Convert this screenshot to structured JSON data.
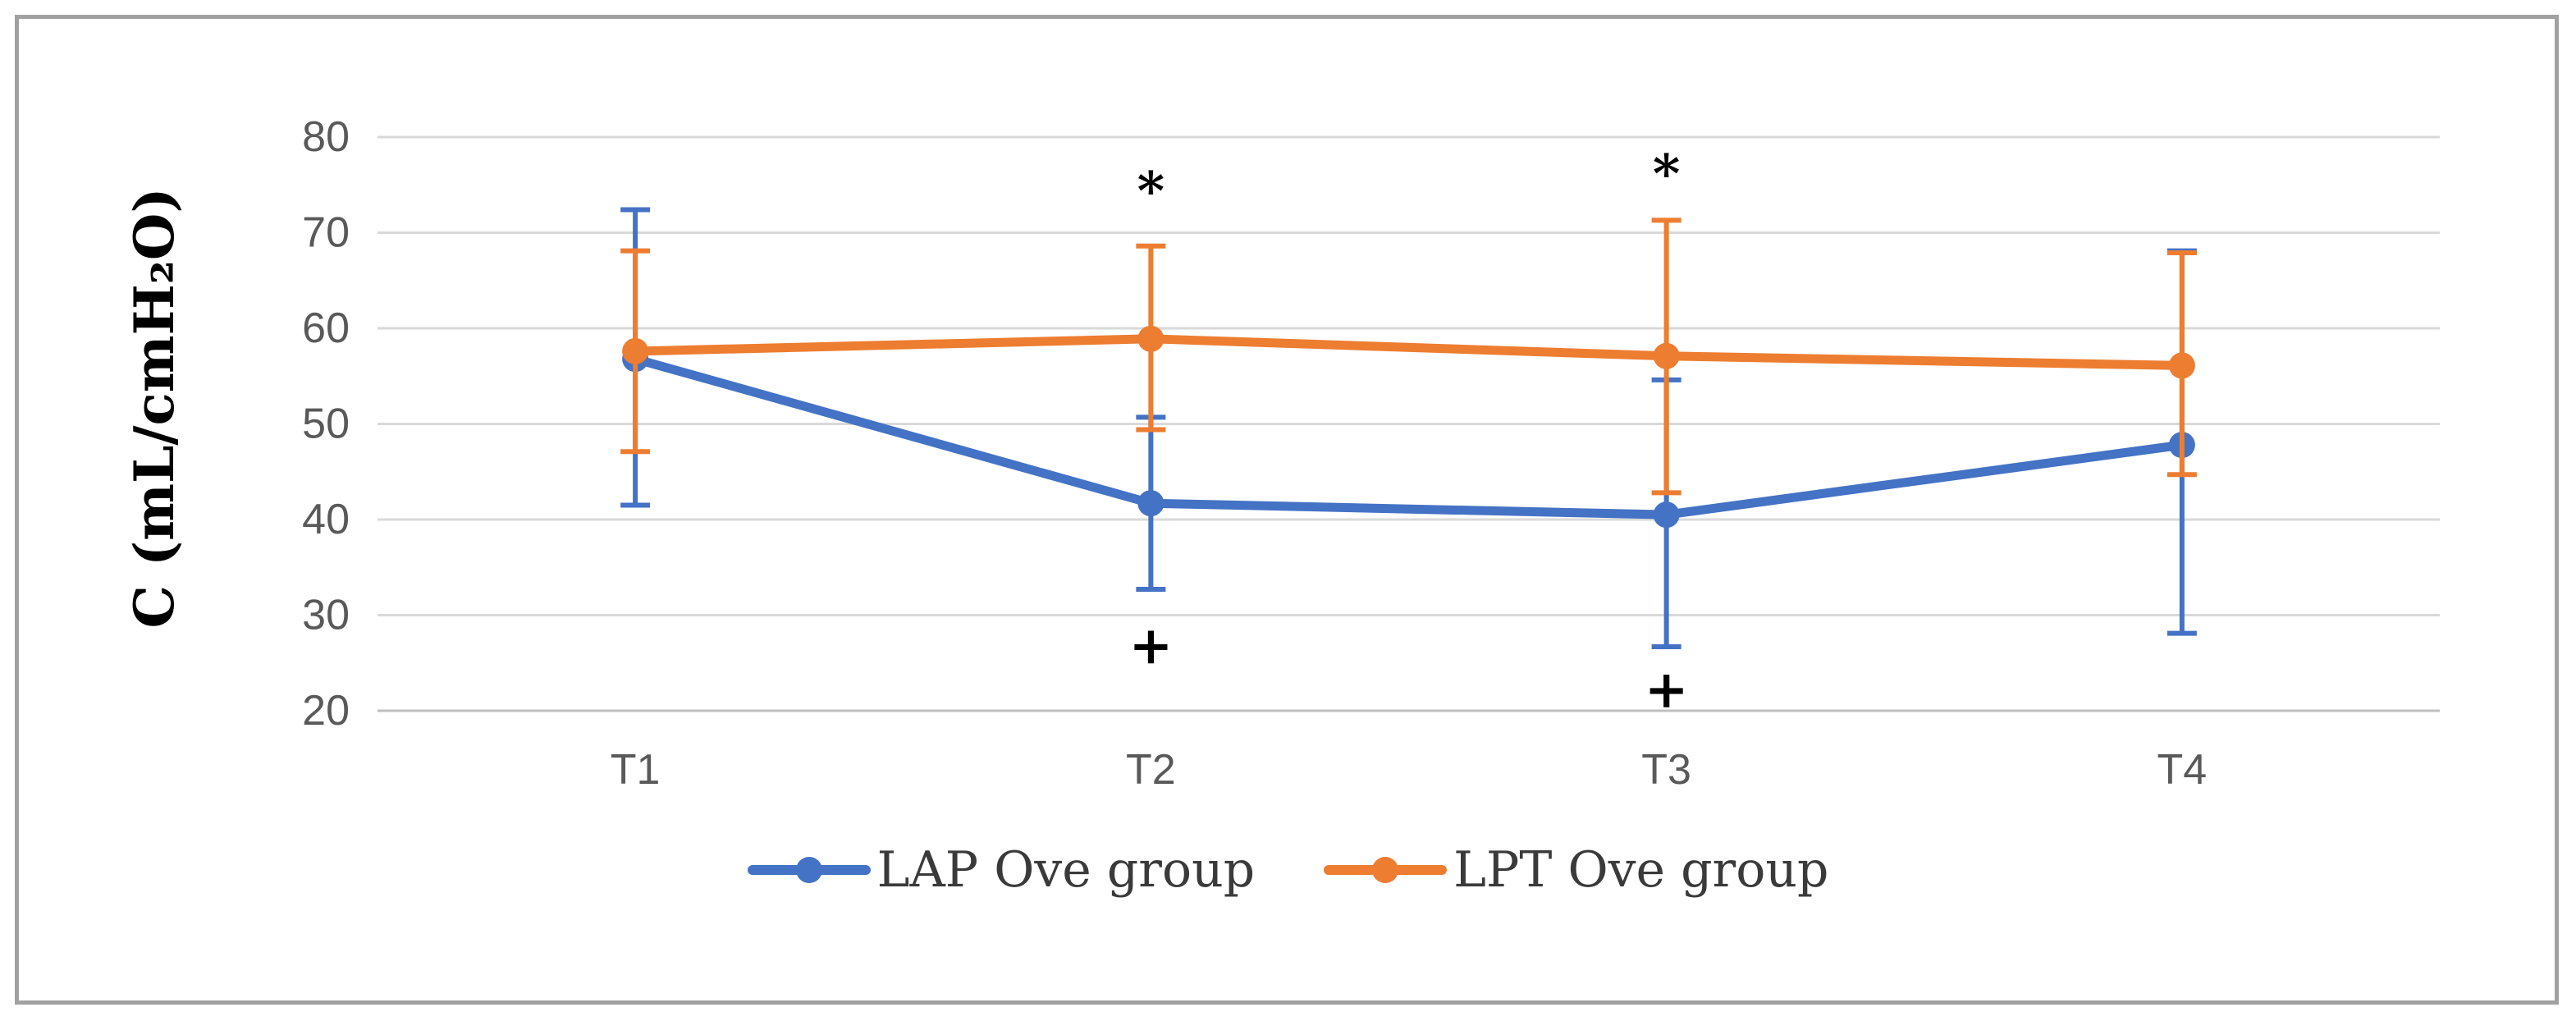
{
  "chart_data": {
    "type": "line",
    "title": "",
    "xlabel": "",
    "ylabel": "C (mL/cmH₂O)",
    "categories": [
      "T1",
      "T2",
      "T3",
      "T4"
    ],
    "ylim": [
      20,
      80
    ],
    "yticks": [
      20,
      30,
      40,
      50,
      60,
      70,
      80
    ],
    "grid": "horizontal",
    "legend_position": "bottom",
    "series": [
      {
        "name": "LAP Ove group",
        "color": "#4472C4",
        "values": [
          56.8,
          41.7,
          40.5,
          47.8
        ],
        "error_upper": [
          72.4,
          50.7,
          54.6,
          68.1
        ],
        "error_lower": [
          41.5,
          32.7,
          26.7,
          28.1
        ]
      },
      {
        "name": "LPT Ove group",
        "color": "#ED7D31",
        "values": [
          57.6,
          58.9,
          57.1,
          56.1
        ],
        "error_upper": [
          68.1,
          68.6,
          71.3,
          67.9
        ],
        "error_lower": [
          47.1,
          49.4,
          42.8,
          44.7
        ]
      }
    ],
    "annotations": [
      {
        "symbol": "*",
        "category": "T2",
        "value": 76.0
      },
      {
        "symbol": "*",
        "category": "T3",
        "value": 77.8
      },
      {
        "symbol": "+",
        "category": "T2",
        "value": 26.8
      },
      {
        "symbol": "+",
        "category": "T3",
        "value": 22.2
      }
    ]
  },
  "colors": {
    "gridline": "#d9d9d9",
    "axis_line": "#bfbfbf",
    "tick_label": "#595959",
    "annotation": "#000000"
  }
}
